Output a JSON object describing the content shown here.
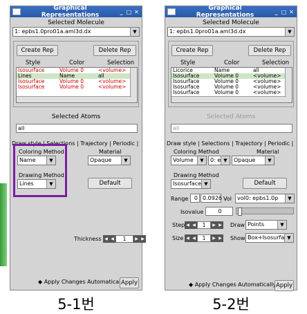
{
  "panel1": {
    "title": "Graphical Representations",
    "selected_molecule_label": "Selected Molecule",
    "molecule": "1: epbs1.0pro01a.aml3d.dx",
    "create_rep": "Create Rep",
    "delete_rep": "Delete Rep",
    "columns": [
      "Style",
      "Color",
      "Selection"
    ],
    "rows": [
      {
        "style": "Isosurface",
        "color": "Volume 0",
        "selection": "<volume>"
      },
      {
        "style": "Lines",
        "color": "Name",
        "selection": "all"
      },
      {
        "style": "Isosurface",
        "color": "Volume 0",
        "selection": "<volume>"
      },
      {
        "style": "Isosurface",
        "color": "Volume 0",
        "selection": "<volume>"
      }
    ],
    "selected_atoms_label": "Selected Atoms",
    "selected_atoms_value": "all",
    "tabs": "Draw style | Selections | Trajectory | Periodic |",
    "coloring_method_label": "Coloring Method",
    "material_label": "Material",
    "coloring_method": "Name",
    "material": "Opaque",
    "drawing_method_label": "Drawing Method",
    "drawing_method": "Lines",
    "default_btn": "Default",
    "thickness_label": "Thickness",
    "thickness_value": "1",
    "apply_auto": "Apply Changes Automatically",
    "apply_btn": "Apply",
    "caption": "5-1번"
  },
  "panel2": {
    "title": "Graphical Representations",
    "selected_molecule_label": "Selected Molecule",
    "molecule": "1: epbs1.0pro01a.aml3d.dx",
    "create_rep": "Create Rep",
    "delete_rep": "Delete Rep",
    "columns": [
      "Style",
      "Color",
      "Selection"
    ],
    "rows": [
      {
        "style": "Licorice",
        "color": "Name",
        "selection": "all"
      },
      {
        "style": "Isosurface",
        "color": "Volume 0",
        "selection": "<volume>"
      },
      {
        "style": "Isosurface",
        "color": "Volume 0",
        "selection": "<volume>"
      },
      {
        "style": "Isosurface",
        "color": "Volume 0",
        "selection": "<volume>"
      },
      {
        "style": "Isosurface",
        "color": "Volume 0",
        "selection": "<volume>"
      }
    ],
    "selected_atoms_label": "Selected Atoms",
    "selected_atoms_value": "all",
    "tabs": "Draw style | Selections | Trajectory | Periodic |",
    "coloring_method_label": "Coloring Method",
    "material_label": "Material",
    "coloring_method": "Volume",
    "color_index": "0: e",
    "material": "Opaque",
    "drawing_method_label": "Drawing Method",
    "drawing_method": "Isosurface",
    "default_btn": "Default",
    "range_label": "Range",
    "range_min": "0",
    "range_max": "0.0926",
    "vol_label": "Vol",
    "vol_value": "vol0: epbs1.0p",
    "isovalue_label": "Isovalue",
    "isovalue": "0",
    "step_label": "Step",
    "step_value": "1",
    "draw_label": "Draw",
    "draw_value": "Points",
    "size_label": "Size",
    "size_value": "1",
    "show_label": "Show",
    "show_value": "Box+Isosurfac",
    "apply_auto": "Apply Changes Automatically",
    "apply_btn": "Apply",
    "caption": "5-2번"
  },
  "colors": {
    "titlebar": "#2a5aa8",
    "selected_row": "#cde6c5",
    "highlight_box": "#7a1fa2",
    "red_text": "#cc0000"
  }
}
